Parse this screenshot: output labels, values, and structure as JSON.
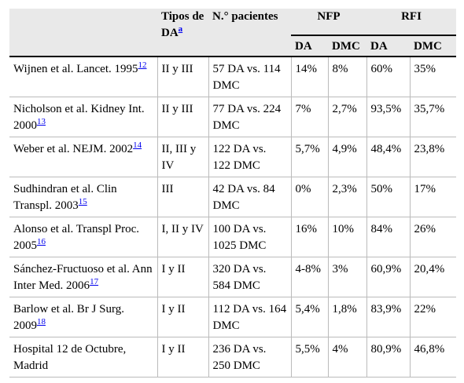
{
  "table": {
    "header": {
      "tipos": "Tipos de DA",
      "tipos_note": "a",
      "pacientes": "N.° pacientes",
      "groups": [
        "NFP",
        "RFI"
      ],
      "sub": [
        "DA",
        "DMC",
        "DA",
        "DMC"
      ]
    },
    "rows": [
      {
        "study": "Wijnen et al. Lancet. 1995",
        "ref": "12",
        "tipos": "II y III",
        "n": "57 DA vs. 114 DMC",
        "values": [
          "14%",
          "8%",
          "60%",
          "35%"
        ]
      },
      {
        "study": "Nicholson et al. Kidney Int. 2000",
        "ref": "13",
        "tipos": "II y III",
        "n": "77 DA vs. 224 DMC",
        "values": [
          "7%",
          "2,7%",
          "93,5%",
          "35,7%"
        ]
      },
      {
        "study": "Weber et al. NEJM. 2002",
        "ref": "14",
        "tipos": "II, III y IV",
        "n": "122 DA vs. 122 DMC",
        "values": [
          "5,7%",
          "4,9%",
          "48,4%",
          "23,8%"
        ]
      },
      {
        "study": "Sudhindran et al. Clin Transpl. 2003",
        "ref": "15",
        "tipos": "III",
        "n": "42 DA vs. 84 DMC",
        "values": [
          "0%",
          "2,3%",
          "50%",
          "17%"
        ]
      },
      {
        "study": "Alonso et al. Transpl Proc. 2005",
        "ref": "16",
        "tipos": "I, II y IV",
        "n": "100 DA vs. 1025 DMC",
        "values": [
          "16%",
          "10%",
          "84%",
          "26%"
        ]
      },
      {
        "study": "Sánchez-Fructuoso et al. Ann Inter Med. 2006",
        "ref": "17",
        "tipos": "I y II",
        "n": "320 DA vs. 584 DMC",
        "values": [
          "4-8%",
          "3%",
          "60,9%",
          "20,4%"
        ]
      },
      {
        "study": "Barlow et al. Br J Surg. 2009",
        "ref": "18",
        "tipos": "I y II",
        "n": "112 DA vs. 164 DMC",
        "values": [
          "5,4%",
          "1,8%",
          "83,9%",
          "22%"
        ]
      },
      {
        "study": "Hospital 12 de Octubre, Madrid",
        "tipos": "I y II",
        "n": "236 DA vs. 250 DMC",
        "values": [
          "5,5%",
          "4%",
          "80,9%",
          "46,8%"
        ]
      }
    ]
  }
}
